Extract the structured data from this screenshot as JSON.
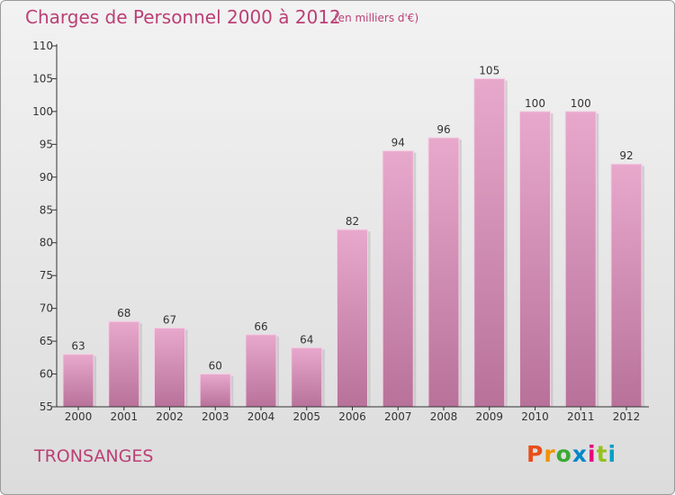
{
  "header": {
    "title": "Charges de Personnel 2000 à 2012",
    "subtitle": "(en milliers d'€)"
  },
  "footer": {
    "commune": "TRONSANGES",
    "logo_text": "Proxiti",
    "logo_colors": [
      "#e84e1b",
      "#f39200",
      "#3aa935",
      "#0087c9",
      "#e6007e",
      "#95c11f",
      "#00a0c6"
    ]
  },
  "colors": {
    "title": "#bb3f76",
    "bar_top": "#e8a8cc",
    "bar_bottom": "#b8729a",
    "axis": "#333333"
  },
  "chart_data": {
    "type": "bar",
    "title": "Charges de Personnel 2000 à 2012",
    "subtitle": "(en milliers d'€)",
    "categories": [
      "2000",
      "2001",
      "2002",
      "2003",
      "2004",
      "2005",
      "2006",
      "2007",
      "2008",
      "2009",
      "2010",
      "2011",
      "2012"
    ],
    "values": [
      63,
      68,
      67,
      60,
      66,
      64,
      82,
      94,
      96,
      105,
      100,
      100,
      92
    ],
    "ylim": [
      55,
      110
    ],
    "yticks": [
      55,
      60,
      65,
      70,
      75,
      80,
      85,
      90,
      95,
      100,
      105,
      110
    ],
    "xlabel": "",
    "ylabel": "",
    "grid": false,
    "data_labels": true
  }
}
